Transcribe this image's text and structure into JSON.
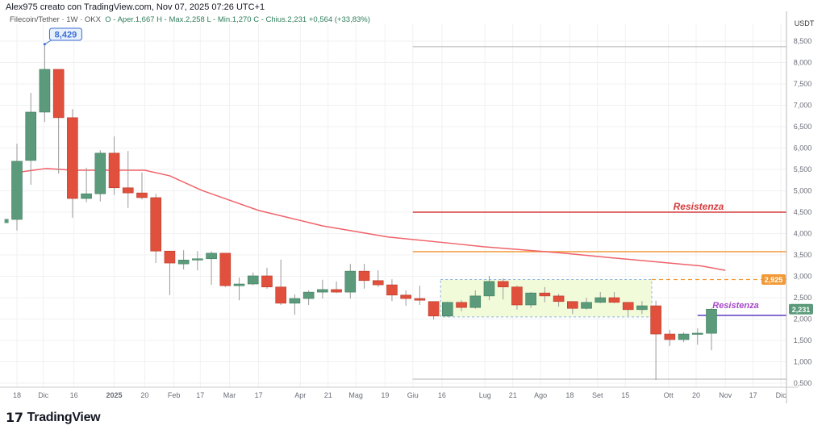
{
  "header": {
    "author_line": "Alex975 creato con TradingView.com, Nov 07, 2025 07:26 UTC+1"
  },
  "legend": {
    "symbol": "Filecoin/Tether · 1W · OKX",
    "ohlc": "O - Aper.1,667  H - Max.2,258  L - Min.1,270  C - Chius.2,231  +0,564 (+33,83%)"
  },
  "brand": {
    "name": "TradingView"
  },
  "colors": {
    "up": "#5b9a7a",
    "down": "#e0503c",
    "ma": "#f0626a",
    "resistance_red": "#d63c3c",
    "orange": "#f29a38",
    "purple": "#5a3fbf",
    "box_fill": "#f2fbd9",
    "marker_blue": "#3b6fd6"
  },
  "chart_data": {
    "type": "candlestick",
    "currency": "USDT",
    "ylim": [
      0.45,
      8.9
    ],
    "grid": true,
    "y_ticks": [
      "0,500",
      "1,000",
      "1,500",
      "2,000",
      "2,500",
      "3,000",
      "3,500",
      "4,000",
      "4,500",
      "5,000",
      "5,500",
      "6,000",
      "6,500",
      "7,000",
      "7,500",
      "8,000",
      "8,500"
    ],
    "y_tick_values": [
      0.5,
      1,
      1.5,
      2,
      2.5,
      3,
      3.5,
      4,
      4.5,
      5,
      5.5,
      6,
      6.5,
      7,
      7.5,
      8,
      8.5
    ],
    "x_ticks": [
      {
        "label": "18",
        "i": 0
      },
      {
        "label": "Dic",
        "i": 1.9
      },
      {
        "label": "16",
        "i": 4.1
      },
      {
        "label": "2025",
        "i": 7.0,
        "bold": true
      },
      {
        "label": "20",
        "i": 9.2
      },
      {
        "label": "Feb",
        "i": 11.3
      },
      {
        "label": "17",
        "i": 13.2
      },
      {
        "label": "Mar",
        "i": 15.3
      },
      {
        "label": "17",
        "i": 17.4
      },
      {
        "label": "Apr",
        "i": 20.4
      },
      {
        "label": "21",
        "i": 22.4
      },
      {
        "label": "Mag",
        "i": 24.4
      },
      {
        "label": "19",
        "i": 26.5
      },
      {
        "label": "Giu",
        "i": 28.5
      },
      {
        "label": "16",
        "i": 30.6
      },
      {
        "label": "Lug",
        "i": 33.7
      },
      {
        "label": "21",
        "i": 35.7
      },
      {
        "label": "Ago",
        "i": 37.7
      },
      {
        "label": "18",
        "i": 39.8
      },
      {
        "label": "Set",
        "i": 41.8
      },
      {
        "label": "15",
        "i": 43.8
      },
      {
        "label": "Ott",
        "i": 46.9
      },
      {
        "label": "20",
        "i": 48.9
      },
      {
        "label": "Nov",
        "i": 51.0
      },
      {
        "label": "17",
        "i": 53.0
      },
      {
        "label": "Dic",
        "i": 55.0
      }
    ],
    "candles": [
      [
        4.26,
        4.33,
        4.25,
        4.34
      ],
      [
        4.33,
        6.1,
        4.07,
        5.69
      ],
      [
        5.71,
        7.29,
        5.14,
        6.84
      ],
      [
        6.84,
        8.429,
        6.61,
        7.84
      ],
      [
        7.84,
        7.84,
        5.4,
        6.71
      ],
      [
        6.71,
        6.91,
        4.37,
        4.82
      ],
      [
        4.82,
        5.54,
        4.73,
        4.93
      ],
      [
        4.93,
        5.95,
        4.75,
        5.88
      ],
      [
        5.88,
        6.27,
        4.9,
        5.07
      ],
      [
        5.07,
        5.93,
        4.6,
        4.95
      ],
      [
        4.95,
        5.43,
        4.8,
        4.84
      ],
      [
        4.84,
        4.93,
        3.31,
        3.59
      ],
      [
        3.59,
        3.59,
        2.56,
        3.31
      ],
      [
        3.29,
        3.61,
        3.16,
        3.38
      ],
      [
        3.38,
        3.59,
        3.14,
        3.41
      ],
      [
        3.41,
        3.58,
        2.8,
        3.54
      ],
      [
        3.54,
        3.54,
        2.75,
        2.78
      ],
      [
        2.78,
        2.97,
        2.44,
        2.82
      ],
      [
        2.82,
        3.09,
        2.79,
        3.01
      ],
      [
        3.01,
        3.2,
        2.71,
        2.75
      ],
      [
        2.75,
        3.39,
        2.33,
        2.37
      ],
      [
        2.37,
        2.58,
        2.1,
        2.48
      ],
      [
        2.48,
        2.67,
        2.33,
        2.63
      ],
      [
        2.63,
        2.92,
        2.48,
        2.69
      ],
      [
        2.69,
        2.88,
        2.61,
        2.63
      ],
      [
        2.63,
        3.29,
        2.48,
        3.12
      ],
      [
        3.12,
        3.29,
        2.71,
        2.9
      ],
      [
        2.9,
        3.14,
        2.75,
        2.8
      ],
      [
        2.8,
        2.93,
        2.42,
        2.56
      ],
      [
        2.56,
        2.67,
        2.31,
        2.48
      ],
      [
        2.48,
        2.78,
        2.33,
        2.44
      ],
      [
        2.41,
        2.41,
        1.99,
        2.07
      ],
      [
        2.07,
        2.41,
        2.05,
        2.39
      ],
      [
        2.39,
        2.44,
        2.18,
        2.27
      ],
      [
        2.27,
        2.67,
        2.24,
        2.54
      ],
      [
        2.54,
        3.01,
        2.44,
        2.88
      ],
      [
        2.88,
        2.95,
        2.46,
        2.75
      ],
      [
        2.75,
        2.78,
        2.22,
        2.33
      ],
      [
        2.33,
        2.63,
        2.26,
        2.61
      ],
      [
        2.61,
        2.75,
        2.39,
        2.54
      ],
      [
        2.54,
        2.59,
        2.29,
        2.41
      ],
      [
        2.41,
        2.42,
        2.12,
        2.25
      ],
      [
        2.25,
        2.5,
        2.22,
        2.39
      ],
      [
        2.39,
        2.63,
        2.37,
        2.5
      ],
      [
        2.5,
        2.63,
        2.37,
        2.39
      ],
      [
        2.39,
        2.39,
        2.07,
        2.22
      ],
      [
        2.22,
        2.42,
        2.12,
        2.31
      ],
      [
        2.31,
        2.43,
        0.575,
        1.65
      ],
      [
        1.65,
        1.75,
        1.37,
        1.52
      ],
      [
        1.52,
        1.69,
        1.46,
        1.65
      ],
      [
        1.65,
        1.78,
        1.4,
        1.67
      ],
      [
        1.667,
        2.258,
        1.27,
        2.231
      ]
    ],
    "candle_format": "[open, high, low, close]",
    "moving_average": [
      [
        0,
        5.43
      ],
      [
        2.1,
        5.52
      ],
      [
        4.1,
        5.48
      ],
      [
        9.2,
        5.48
      ],
      [
        11.0,
        5.35
      ],
      [
        13.3,
        5.01
      ],
      [
        17.4,
        4.54
      ],
      [
        22.0,
        4.18
      ],
      [
        26.7,
        3.92
      ],
      [
        31.3,
        3.77
      ],
      [
        33.6,
        3.69
      ],
      [
        36.0,
        3.63
      ],
      [
        39.4,
        3.54
      ],
      [
        42.9,
        3.43
      ],
      [
        47.0,
        3.31
      ],
      [
        49.3,
        3.24
      ],
      [
        51.0,
        3.14
      ]
    ],
    "high_marker": {
      "label": "8,429",
      "value": 8.429
    },
    "levels": [
      {
        "value": 8.37,
        "color": "#b0b0b0",
        "from_i": 28.5
      },
      {
        "value": 4.5,
        "color": "#d63c3c",
        "from_i": 28.5,
        "label": "Resistenza"
      },
      {
        "value": 3.575,
        "color": "#f29a38",
        "from_i": 28.5
      },
      {
        "value": 0.594,
        "color": "#b0b0b0",
        "from_i": 28.5
      },
      {
        "value": 2.085,
        "color": "#5a3fbf",
        "from_i": 49.0,
        "label": "Resistenza"
      }
    ],
    "dashed_level": {
      "value": 2.925,
      "label": "2,925",
      "from_i": 45.7
    },
    "range_box": {
      "from_i": 30.5,
      "to_i": 45.7,
      "top": 2.925,
      "bottom": 2.05
    },
    "last_price": {
      "label": "2,231",
      "value": 2.231
    }
  }
}
